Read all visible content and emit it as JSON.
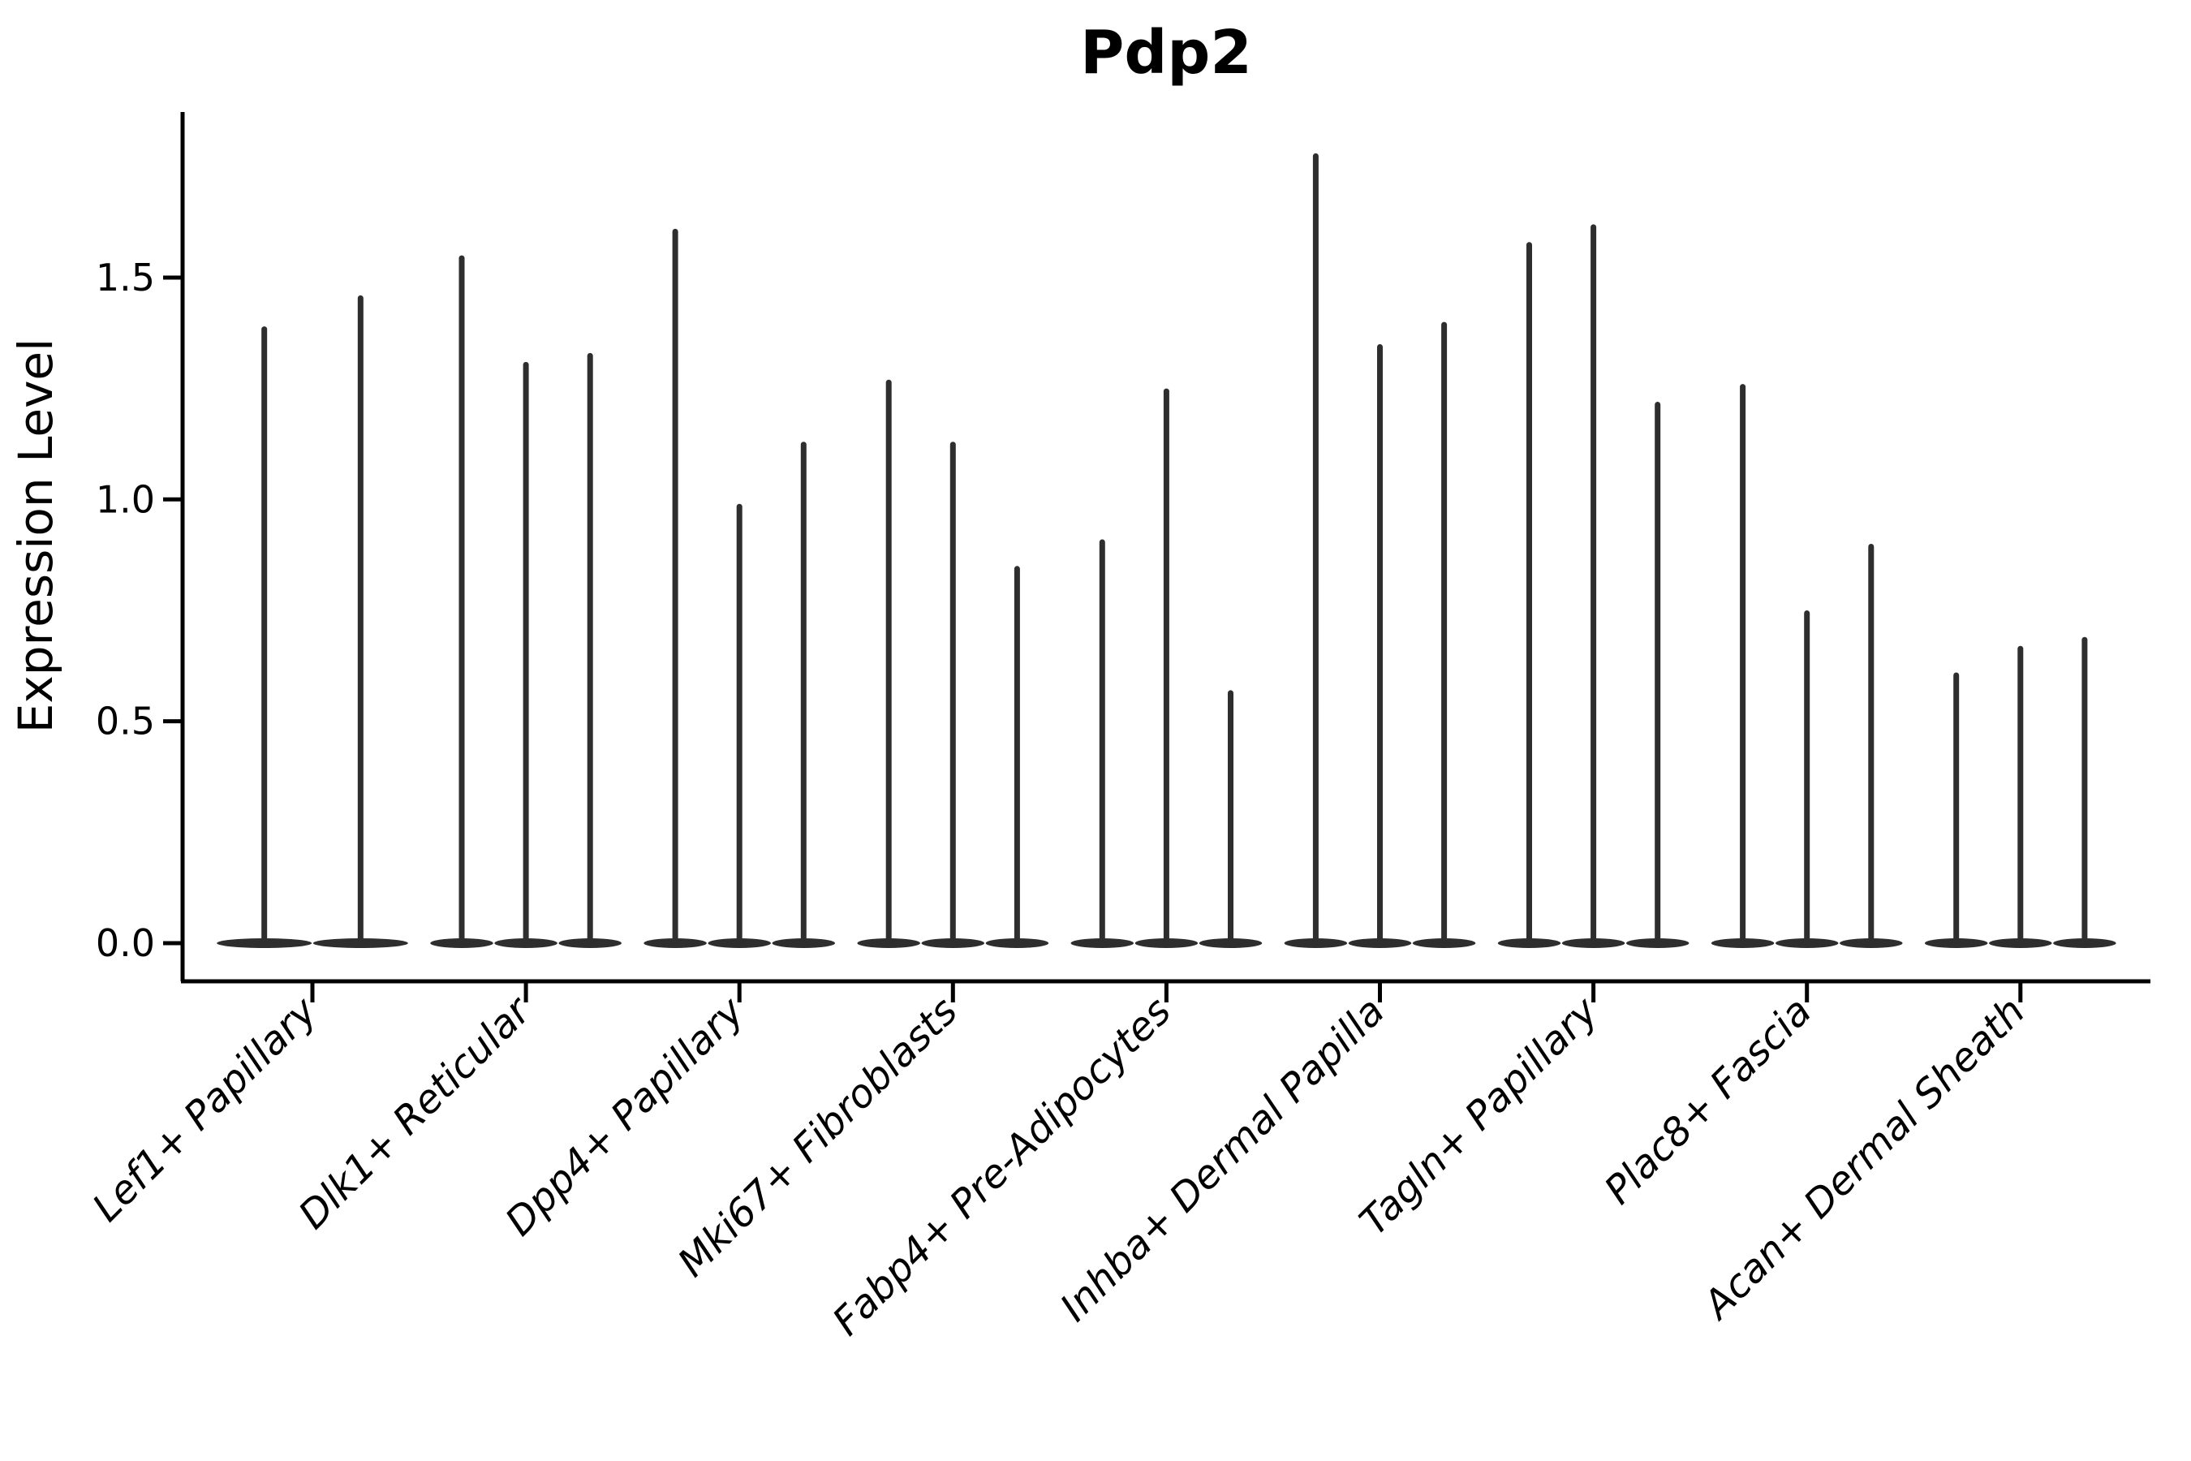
{
  "figure": {
    "title": "Pdp2",
    "ylabel": "Expression Level"
  },
  "chart_data": {
    "type": "violin",
    "title": "Pdp2",
    "xlabel": "",
    "ylabel": "Expression Level",
    "ytick_labels": [
      "0.0",
      "0.5",
      "1.0",
      "1.5"
    ],
    "ytick_values": [
      0.0,
      0.5,
      1.0,
      1.5
    ],
    "ylim": [
      -0.09,
      1.87
    ],
    "grid": false,
    "legend": "none",
    "categories": [
      "Lef1+ Papillary",
      "Dlk1+ Reticular",
      "Dpp4+ Papillary",
      "Mki67+ Fibroblasts",
      "Fabp4+ Pre-Adipocytes",
      "Inhba+ Dermal Papilla",
      "Tagln+ Papillary",
      "Plac8+ Fascia",
      "Acan+ Dermal Sheath"
    ],
    "groups": [
      {
        "label": "Lef1+ Papillary",
        "violin_max_values": [
          1.39,
          1.46
        ]
      },
      {
        "label": "Dlk1+ Reticular",
        "violin_max_values": [
          1.55,
          1.31,
          1.33
        ]
      },
      {
        "label": "Dpp4+ Papillary",
        "violin_max_values": [
          1.61,
          0.99,
          1.13
        ]
      },
      {
        "label": "Mki67+ Fibroblasts",
        "violin_max_values": [
          1.27,
          1.13,
          0.85
        ]
      },
      {
        "label": "Fabp4+ Pre-Adipocytes",
        "violin_max_values": [
          0.91,
          1.25,
          0.57
        ]
      },
      {
        "label": "Inhba+ Dermal Papilla",
        "violin_max_values": [
          1.78,
          1.35,
          1.4
        ]
      },
      {
        "label": "Tagln+ Papillary",
        "violin_max_values": [
          1.58,
          1.62,
          1.22
        ]
      },
      {
        "label": "Plac8+ Fascia",
        "violin_max_values": [
          1.26,
          0.75,
          0.9
        ]
      },
      {
        "label": "Acan+ Dermal Sheath",
        "violin_max_values": [
          0.61,
          0.67,
          0.69
        ]
      }
    ],
    "violins_baseline_value": 0.0,
    "colors": {
      "violin": "#2e2e2e",
      "axis": "#000000",
      "text": "#000000",
      "background": "#ffffff"
    }
  }
}
